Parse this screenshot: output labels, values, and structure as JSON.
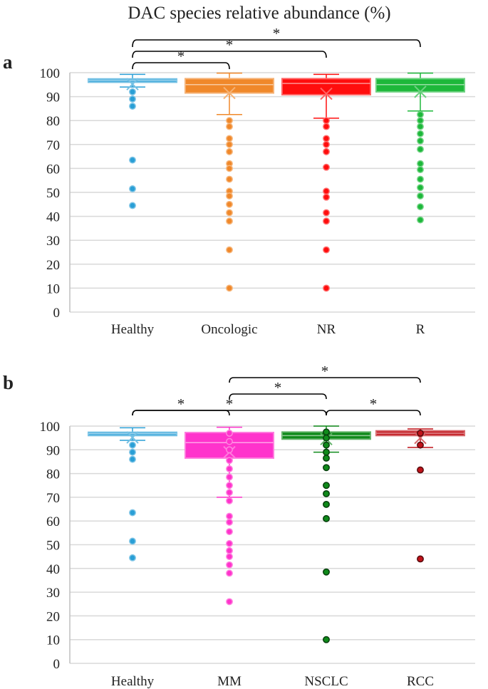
{
  "chart_data": [
    {
      "type": "box",
      "panel": "a",
      "title": "DAC species relative abundance (%)",
      "xlabel": "",
      "ylabel": "",
      "ylim": [
        0,
        100
      ],
      "yticks": [
        0,
        10,
        20,
        30,
        40,
        50,
        60,
        70,
        80,
        90,
        100
      ],
      "grid": true,
      "categories": [
        "Healthy",
        "Oncologic",
        "NR",
        "R"
      ],
      "series": [
        {
          "name": "Healthy",
          "color": "#2a9fd6",
          "q1": 96.0,
          "median": 96.8,
          "q3": 97.4,
          "mean": 95.2,
          "whisker_low": 94.0,
          "whisker_high": 99.3,
          "outliers": [
            92.0,
            89.0,
            86.0,
            63.5,
            51.5,
            44.5
          ]
        },
        {
          "name": "Oncologic",
          "color": "#f0882a",
          "q1": 91.5,
          "median": 95.0,
          "q3": 97.5,
          "mean": 91.5,
          "whisker_low": 82.5,
          "whisker_high": 99.8,
          "outliers": [
            80.0,
            77.5,
            72.5,
            70.0,
            67.0,
            62.0,
            60.0,
            55.5,
            50.5,
            48.5,
            45.0,
            41.5,
            38.0,
            26.0,
            10.0
          ]
        },
        {
          "name": "NR",
          "color": "#ff0d0d",
          "q1": 90.8,
          "median": 95.5,
          "q3": 97.5,
          "mean": 91.2,
          "whisker_low": 81.0,
          "whisker_high": 99.3,
          "outliers": [
            80.0,
            77.5,
            72.5,
            70.0,
            67.0,
            60.5,
            50.5,
            48.0,
            41.5,
            38.0,
            26.0,
            10.0
          ]
        },
        {
          "name": "R",
          "color": "#1db83a",
          "q1": 92.0,
          "median": 95.0,
          "q3": 97.5,
          "mean": 92.0,
          "whisker_low": 84.0,
          "whisker_high": 99.8,
          "outliers": [
            82.5,
            80.0,
            77.5,
            74.5,
            71.5,
            68.0,
            62.0,
            59.5,
            55.5,
            52.0,
            48.5,
            44.0,
            38.5
          ]
        }
      ],
      "significance": [
        {
          "from": "Healthy",
          "to": "Oncologic",
          "label": "*"
        },
        {
          "from": "Healthy",
          "to": "NR",
          "label": "*"
        },
        {
          "from": "Healthy",
          "to": "R",
          "label": "*"
        }
      ]
    },
    {
      "type": "box",
      "panel": "b",
      "title": "",
      "xlabel": "",
      "ylabel": "",
      "ylim": [
        0,
        100
      ],
      "yticks": [
        0,
        10,
        20,
        30,
        40,
        50,
        60,
        70,
        80,
        90,
        100
      ],
      "grid": true,
      "categories": [
        "Healthy",
        "MM",
        "NSCLC",
        "RCC"
      ],
      "series": [
        {
          "name": "Healthy",
          "color": "#2a9fd6",
          "q1": 96.0,
          "median": 96.8,
          "q3": 97.4,
          "mean": 95.2,
          "whisker_low": 94.0,
          "whisker_high": 99.3,
          "outliers": [
            92.0,
            89.0,
            86.0,
            63.5,
            51.5,
            44.5
          ]
        },
        {
          "name": "MM",
          "color": "#ff33cc",
          "q1": 86.5,
          "median": 93.0,
          "q3": 97.3,
          "mean": 89.0,
          "whisker_low": 70.0,
          "whisker_high": 99.5,
          "outliers": [
            97.0,
            93.5,
            90.0,
            85.5,
            82.0,
            78.5,
            75.0,
            72.0,
            68.5,
            62.0,
            59.5,
            55.5,
            50.5,
            47.5,
            45.0,
            41.5,
            38.0,
            26.0
          ]
        },
        {
          "name": "NSCLC",
          "color": "#0f8a1a",
          "q1": 94.5,
          "median": 96.0,
          "q3": 97.5,
          "mean": 94.5,
          "whisker_low": 89.0,
          "whisker_high": 100.0,
          "outliers": [
            97.5,
            95.0,
            92.0,
            89.0,
            86.5,
            82.5,
            75.0,
            71.5,
            67.0,
            61.0,
            38.5,
            10.0
          ]
        },
        {
          "name": "RCC",
          "color": "#c0131a",
          "q1": 96.0,
          "median": 97.0,
          "q3": 98.0,
          "mean": 95.0,
          "whisker_low": 91.0,
          "whisker_high": 98.8,
          "outliers": [
            97.0,
            92.0,
            81.5,
            44.0
          ]
        }
      ],
      "significance": [
        {
          "from": "Healthy",
          "to": "MM",
          "label": "*"
        },
        {
          "from": "Healthy",
          "to": "NSCLC",
          "label": "*"
        },
        {
          "from": "MM",
          "to": "NSCLC",
          "label": "*"
        },
        {
          "from": "MM",
          "to": "RCC",
          "label": "*"
        },
        {
          "from": "NSCLC",
          "to": "RCC",
          "label": "*"
        }
      ]
    }
  ]
}
